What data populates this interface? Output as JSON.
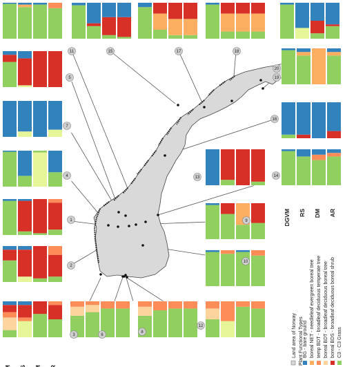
{
  "colors": {
    "land": "#d9d9d9",
    "BG": "#3182bd",
    "NET": "#fdae61",
    "BDT": "#fdd49e",
    "temp": "#fc8d59",
    "BDS": "#d73027",
    "C3": "#91cf60",
    "grass_light": "#e6f598"
  },
  "methods": [
    "DGVM",
    "RS",
    "DM",
    "AR"
  ],
  "legend": {
    "land_label": "Land area of Norway",
    "pft_header": "Plant Functional Types",
    "items": [
      {
        "key": "BG",
        "label": "BG - bare ground"
      },
      {
        "key": "NET",
        "label": "boreal NET - needleleaf evergreen boreal tree"
      },
      {
        "key": "temp",
        "label": "temp BDT - broadleaf deciduous temperate tree"
      },
      {
        "key": "BDT",
        "label": "boreal BDT - broadleaf deciduous boreal tree"
      },
      {
        "key": "BDS",
        "label": "boreal BDS - broadleaf deciduous boreal shrub"
      },
      {
        "key": "C3",
        "label": "C3 - C3 Grass"
      }
    ]
  },
  "sites": [
    {
      "id": "1",
      "label": "1"
    },
    {
      "id": "2",
      "label": "2"
    },
    {
      "id": "3",
      "label": "3"
    },
    {
      "id": "4",
      "label": "4"
    },
    {
      "id": "5",
      "label": "5"
    },
    {
      "id": "6",
      "label": "6"
    },
    {
      "id": "7",
      "label": "7"
    },
    {
      "id": "8",
      "label": "8"
    },
    {
      "id": "9",
      "label": "9"
    },
    {
      "id": "10",
      "label": "10"
    },
    {
      "id": "11",
      "label": "11"
    },
    {
      "id": "12",
      "label": "12"
    },
    {
      "id": "13",
      "label": "13"
    },
    {
      "id": "14",
      "label": "14"
    },
    {
      "id": "15",
      "label": "15"
    },
    {
      "id": "16",
      "label": "16"
    },
    {
      "id": "17",
      "label": "17"
    },
    {
      "id": "18",
      "label": "18"
    },
    {
      "id": "19",
      "label": "19"
    },
    {
      "id": "20",
      "label": "20"
    }
  ],
  "panels": [
    {
      "site": "a",
      "bars": [
        [
          {
            "c": "C3",
            "v": 0.97
          },
          {
            "c": "BG",
            "v": 0.03
          }
        ],
        [
          {
            "c": "C3",
            "v": 0.88
          },
          {
            "c": "NET",
            "v": 0.07
          },
          {
            "c": "BG",
            "v": 0.05
          }
        ],
        [
          {
            "c": "C3",
            "v": 0.95
          },
          {
            "c": "BG",
            "v": 0.05
          }
        ],
        [
          {
            "c": "C3",
            "v": 0.85
          },
          {
            "c": "temp",
            "v": 0.15
          }
        ]
      ]
    },
    {
      "site": "11",
      "bars": [
        [
          {
            "c": "C3",
            "v": 0.93
          },
          {
            "c": "BG",
            "v": 0.07
          }
        ],
        [
          {
            "c": "C3",
            "v": 0.35
          },
          {
            "c": "BDS",
            "v": 0.08
          },
          {
            "c": "BG",
            "v": 0.57
          }
        ],
        [
          {
            "c": "C3",
            "v": 0.1
          },
          {
            "c": "BDS",
            "v": 0.5
          },
          {
            "c": "BG",
            "v": 0.4
          }
        ],
        [
          {
            "c": "C3",
            "v": 0.05
          },
          {
            "c": "BDS",
            "v": 0.55
          },
          {
            "c": "BG",
            "v": 0.4
          }
        ]
      ]
    },
    {
      "site": "15",
      "bars": [
        [
          {
            "c": "C3",
            "v": 0.88
          },
          {
            "c": "BG",
            "v": 0.12
          }
        ],
        [
          {
            "c": "C3",
            "v": 0.25
          },
          {
            "c": "NET",
            "v": 0.45
          },
          {
            "c": "BDS",
            "v": 0.3
          }
        ],
        [
          {
            "c": "C3",
            "v": 0.1
          },
          {
            "c": "NET",
            "v": 0.45
          },
          {
            "c": "BDS",
            "v": 0.45
          }
        ],
        [
          {
            "c": "C3",
            "v": 0.1
          },
          {
            "c": "NET",
            "v": 0.45
          },
          {
            "c": "BDS",
            "v": 0.45
          }
        ]
      ]
    },
    {
      "site": "17",
      "bars": [
        [
          {
            "c": "C3",
            "v": 0.95
          },
          {
            "c": "BG",
            "v": 0.05
          }
        ],
        [
          {
            "c": "C3",
            "v": 0.2
          },
          {
            "c": "NET",
            "v": 0.5
          },
          {
            "c": "BDS",
            "v": 0.3
          }
        ],
        [
          {
            "c": "C3",
            "v": 0.2
          },
          {
            "c": "NET",
            "v": 0.5
          },
          {
            "c": "BDS",
            "v": 0.3
          }
        ],
        [
          {
            "c": "C3",
            "v": 0.2
          },
          {
            "c": "NET",
            "v": 0.5
          },
          {
            "c": "BDS",
            "v": 0.3
          }
        ]
      ]
    },
    {
      "site": "20",
      "bars": [
        [
          {
            "c": "C3",
            "v": 0.95
          },
          {
            "c": "BG",
            "v": 0.05
          }
        ],
        [
          {
            "c": "grass_light",
            "v": 0.3
          },
          {
            "c": "BG",
            "v": 0.7
          }
        ],
        [
          {
            "c": "C3",
            "v": 0.15
          },
          {
            "c": "BDS",
            "v": 0.35
          },
          {
            "c": "BG",
            "v": 0.5
          }
        ],
        [
          {
            "c": "C3",
            "v": 0.35
          },
          {
            "c": "BDS",
            "v": 0.05
          },
          {
            "c": "BG",
            "v": 0.6
          }
        ]
      ]
    },
    {
      "site": "19",
      "bars": [
        [
          {
            "c": "C3",
            "v": 0.95
          },
          {
            "c": "BG",
            "v": 0.05
          }
        ],
        [
          {
            "c": "C3",
            "v": 0.8
          },
          {
            "c": "NET",
            "v": 0.1
          },
          {
            "c": "BG",
            "v": 0.1
          }
        ],
        [
          {
            "c": "NET",
            "v": 1.0
          }
        ],
        [
          {
            "c": "C3",
            "v": 0.8
          },
          {
            "c": "NET",
            "v": 0.1
          },
          {
            "c": "BG",
            "v": 0.1
          }
        ]
      ]
    },
    {
      "site": "18",
      "bars": [
        [
          {
            "c": "C3",
            "v": 0.1
          },
          {
            "c": "BG",
            "v": 0.9
          }
        ],
        [
          {
            "c": "BDS",
            "v": 0.1
          },
          {
            "c": "BG",
            "v": 0.9
          }
        ],
        [
          {
            "c": "BG",
            "v": 1.0
          }
        ],
        [
          {
            "c": "BDS",
            "v": 0.2
          },
          {
            "c": "BG",
            "v": 0.8
          }
        ]
      ]
    },
    {
      "site": "16",
      "bars": [
        [
          {
            "c": "C3",
            "v": 0.95
          },
          {
            "c": "BG",
            "v": 0.05
          }
        ],
        [
          {
            "c": "C3",
            "v": 0.8
          },
          {
            "c": "BG",
            "v": 0.2
          }
        ],
        [
          {
            "c": "C3",
            "v": 0.7
          },
          {
            "c": "temp",
            "v": 0.15
          },
          {
            "c": "BG",
            "v": 0.15
          }
        ],
        [
          {
            "c": "C3",
            "v": 0.8
          },
          {
            "c": "temp",
            "v": 0.1
          },
          {
            "c": "BG",
            "v": 0.1
          }
        ]
      ]
    },
    {
      "site": "5",
      "bars": [
        [
          {
            "c": "C3",
            "v": 0.7
          },
          {
            "c": "BDS",
            "v": 0.2
          },
          {
            "c": "BG",
            "v": 0.1
          }
        ],
        [
          {
            "c": "grass_light",
            "v": 0.05
          },
          {
            "c": "BDS",
            "v": 0.75
          },
          {
            "c": "BG",
            "v": 0.2
          }
        ],
        [
          {
            "c": "BDS",
            "v": 1.0
          }
        ],
        [
          {
            "c": "BDS",
            "v": 1.0
          }
        ]
      ]
    },
    {
      "site": "7",
      "bars": [
        [
          {
            "c": "BG",
            "v": 1.0
          }
        ],
        [
          {
            "c": "grass_light",
            "v": 0.15
          },
          {
            "c": "BG",
            "v": 0.85
          }
        ],
        [
          {
            "c": "BG",
            "v": 1.0
          }
        ],
        [
          {
            "c": "grass_light",
            "v": 0.2
          },
          {
            "c": "BG",
            "v": 0.8
          }
        ]
      ]
    },
    {
      "site": "4",
      "bars": [
        [
          {
            "c": "C3",
            "v": 0.97
          },
          {
            "c": "BG",
            "v": 0.03
          }
        ],
        [
          {
            "c": "C3",
            "v": 0.3
          },
          {
            "c": "BG",
            "v": 0.7
          }
        ],
        [
          {
            "c": "grass_light",
            "v": 0.95
          },
          {
            "c": "C3",
            "v": 0.05
          }
        ],
        [
          {
            "c": "C3",
            "v": 0.4
          },
          {
            "c": "BG",
            "v": 0.6
          }
        ]
      ]
    },
    {
      "site": "1",
      "bars": [
        [
          {
            "c": "C3",
            "v": 0.95
          },
          {
            "c": "BG",
            "v": 0.05
          }
        ],
        [
          {
            "c": "C3",
            "v": 0.1
          },
          {
            "c": "BDS",
            "v": 0.85
          },
          {
            "c": "BG",
            "v": 0.05
          }
        ],
        [
          {
            "c": "C3",
            "v": 0.05
          },
          {
            "c": "BDS",
            "v": 0.95
          }
        ],
        [
          {
            "c": "C3",
            "v": 0.15
          },
          {
            "c": "BDS",
            "v": 0.75
          },
          {
            "c": "temp",
            "v": 0.1
          }
        ]
      ]
    },
    {
      "site": "2",
      "bars": [
        [
          {
            "c": "C3",
            "v": 0.6
          },
          {
            "c": "BDS",
            "v": 0.3
          },
          {
            "c": "BG",
            "v": 0.1
          }
        ],
        [
          {
            "c": "grass_light",
            "v": 0.15
          },
          {
            "c": "BDS",
            "v": 0.75
          },
          {
            "c": "BG",
            "v": 0.1
          }
        ],
        [
          {
            "c": "C3",
            "v": 0.1
          },
          {
            "c": "BDS",
            "v": 0.9
          }
        ],
        [
          {
            "c": "C3",
            "v": 0.15
          },
          {
            "c": "BDS",
            "v": 0.6
          },
          {
            "c": "temp",
            "v": 0.25
          }
        ]
      ]
    },
    {
      "site": "3",
      "bars": [
        [
          {
            "c": "C3",
            "v": 0.2
          },
          {
            "c": "BDT",
            "v": 0.35
          },
          {
            "c": "temp",
            "v": 0.15
          },
          {
            "c": "BDS",
            "v": 0.2
          },
          {
            "c": "BG",
            "v": 0.1
          }
        ],
        [
          {
            "c": "grass_light",
            "v": 0.45
          },
          {
            "c": "temp",
            "v": 0.1
          },
          {
            "c": "BDS",
            "v": 0.35
          },
          {
            "c": "BG",
            "v": 0.1
          }
        ],
        [
          {
            "c": "C3",
            "v": 0.65
          },
          {
            "c": "BDS",
            "v": 0.35
          }
        ],
        [
          {
            "c": "C3",
            "v": 0.5
          },
          {
            "c": "BDS",
            "v": 0.4
          },
          {
            "c": "temp",
            "v": 0.1
          }
        ]
      ]
    },
    {
      "site": "6",
      "bars": [
        [
          {
            "c": "C3",
            "v": 0.6
          },
          {
            "c": "BDT",
            "v": 0.25
          },
          {
            "c": "temp",
            "v": 0.15
          }
        ],
        [
          {
            "c": "C3",
            "v": 0.7
          },
          {
            "c": "BDT",
            "v": 0.2
          },
          {
            "c": "temp",
            "v": 0.1
          }
        ],
        [
          {
            "c": "C3",
            "v": 0.8
          },
          {
            "c": "temp",
            "v": 0.2
          }
        ],
        [
          {
            "c": "C3",
            "v": 0.8
          },
          {
            "c": "temp",
            "v": 0.2
          }
        ]
      ]
    },
    {
      "site": "8",
      "bars": [
        [
          {
            "c": "C3",
            "v": 0.6
          },
          {
            "c": "BDT",
            "v": 0.25
          },
          {
            "c": "temp",
            "v": 0.15
          }
        ],
        [
          {
            "c": "C3",
            "v": 0.75
          },
          {
            "c": "temp",
            "v": 0.25
          }
        ],
        [
          {
            "c": "C3",
            "v": 0.8
          },
          {
            "c": "temp",
            "v": 0.2
          }
        ],
        [
          {
            "c": "C3",
            "v": 0.8
          },
          {
            "c": "temp",
            "v": 0.2
          }
        ]
      ]
    },
    {
      "site": "12",
      "bars": [
        [
          {
            "c": "C3",
            "v": 0.5
          },
          {
            "c": "BDT",
            "v": 0.3
          },
          {
            "c": "temp",
            "v": 0.2
          }
        ],
        [
          {
            "c": "grass_light",
            "v": 0.45
          },
          {
            "c": "temp",
            "v": 0.55
          }
        ],
        [
          {
            "c": "C3",
            "v": 0.85
          },
          {
            "c": "temp",
            "v": 0.15
          }
        ],
        [
          {
            "c": "C3",
            "v": 0.8
          },
          {
            "c": "temp",
            "v": 0.2
          }
        ]
      ]
    },
    {
      "site": "14",
      "bars": [
        [
          {
            "c": "BG",
            "v": 1.0
          }
        ],
        [
          {
            "c": "C3",
            "v": 0.15
          },
          {
            "c": "BDS",
            "v": 0.85
          }
        ],
        [
          {
            "c": "BDS",
            "v": 1.0
          }
        ],
        [
          {
            "c": "C3",
            "v": 0.1
          },
          {
            "c": "BDS",
            "v": 0.9
          }
        ]
      ]
    },
    {
      "site": "9",
      "bars": [
        [
          {
            "c": "C3",
            "v": 0.95
          },
          {
            "c": "BG",
            "v": 0.05
          }
        ],
        [
          {
            "c": "C3",
            "v": 0.7
          },
          {
            "c": "BDS",
            "v": 0.3
          }
        ],
        [
          {
            "c": "C3",
            "v": 0.4
          },
          {
            "c": "NET",
            "v": 0.6
          }
        ],
        [
          {
            "c": "C3",
            "v": 0.45
          },
          {
            "c": "BDS",
            "v": 0.55
          }
        ]
      ]
    },
    {
      "site": "10",
      "bars": [
        [
          {
            "c": "C3",
            "v": 0.95
          },
          {
            "c": "BG",
            "v": 0.05
          }
        ],
        [
          {
            "c": "C3",
            "v": 0.9
          },
          {
            "c": "temp",
            "v": 0.1
          }
        ],
        [
          {
            "c": "C3",
            "v": 0.95
          },
          {
            "c": "BG",
            "v": 0.05
          }
        ],
        [
          {
            "c": "C3",
            "v": 0.85
          },
          {
            "c": "temp",
            "v": 0.15
          }
        ]
      ]
    },
    {
      "site": "13",
      "bars": [
        [
          {
            "c": "C3",
            "v": 0.95
          },
          {
            "c": "BG",
            "v": 0.05
          }
        ],
        [
          {
            "c": "C3",
            "v": 0.9
          },
          {
            "c": "temp",
            "v": 0.1
          }
        ],
        [
          {
            "c": "C3",
            "v": 0.95
          },
          {
            "c": "BG",
            "v": 0.05
          }
        ],
        [
          {
            "c": "C3",
            "v": 0.85
          },
          {
            "c": "temp",
            "v": 0.15
          }
        ]
      ]
    }
  ]
}
